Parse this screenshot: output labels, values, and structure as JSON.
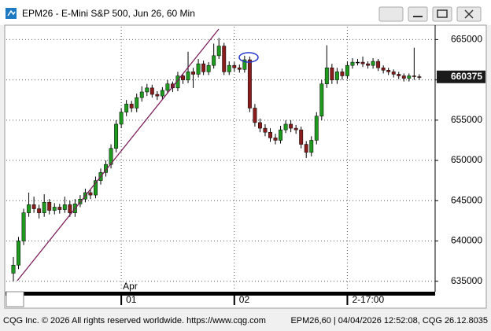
{
  "chart_data": {
    "type": "candlestick",
    "title": "EPM26 - E-Mini S&P 500, Jun 26, 60 Min",
    "month_label": "Apr",
    "categories": [
      null,
      null,
      null,
      null,
      null,
      null,
      null,
      null,
      null,
      null,
      null,
      null,
      null,
      null,
      null,
      null,
      null,
      null,
      null,
      null,
      null,
      "01",
      null,
      null,
      null,
      null,
      null,
      null,
      null,
      null,
      null,
      null,
      null,
      null,
      null,
      null,
      null,
      null,
      null,
      null,
      null,
      null,
      null,
      "02",
      null,
      null,
      null,
      null,
      null,
      null,
      null,
      null,
      null,
      null,
      null,
      null,
      null,
      null,
      null,
      null,
      null,
      null,
      null,
      null,
      null,
      "2-17:00",
      null,
      null,
      null,
      null,
      null,
      null,
      null,
      null,
      null,
      null,
      null,
      null,
      null,
      null
    ],
    "open": [
      636000,
      637000,
      640000,
      643500,
      644500,
      644000,
      643500,
      644800,
      643800,
      644200,
      643900,
      644500,
      643500,
      644600,
      645200,
      646000,
      645700,
      647500,
      648500,
      649500,
      651500,
      654500,
      656000,
      657000,
      656500,
      657800,
      658500,
      659000,
      658200,
      658000,
      658700,
      659500,
      659000,
      660500,
      660000,
      661000,
      660700,
      662000,
      661000,
      661800,
      663000,
      664200,
      661000,
      661800,
      661500,
      661300,
      662500,
      656500,
      654700,
      654000,
      653500,
      652800,
      652500,
      653800,
      654500,
      654000,
      653800,
      652000,
      651000,
      652500,
      655500,
      659500,
      661500,
      660000,
      661000,
      660500,
      661800,
      662200,
      662200,
      662000,
      661800,
      662300,
      661500,
      661200,
      661000,
      660700,
      660500,
      660200,
      660500,
      660400
    ],
    "high": [
      638000,
      640500,
      644000,
      646000,
      645500,
      644500,
      645800,
      645200,
      644700,
      644600,
      645500,
      645000,
      645200,
      645700,
      646500,
      646400,
      648000,
      649000,
      650000,
      652000,
      655000,
      656500,
      657500,
      657400,
      658300,
      659200,
      659500,
      659400,
      658600,
      659100,
      660000,
      659800,
      661000,
      660800,
      663500,
      661500,
      662600,
      662400,
      662200,
      664500,
      665200,
      664600,
      662300,
      662200,
      661900,
      663000,
      662900,
      657000,
      655200,
      654500,
      654000,
      653300,
      654300,
      655000,
      655000,
      654400,
      654200,
      652400,
      653000,
      656000,
      660000,
      664300,
      662000,
      661500,
      661400,
      662300,
      662700,
      662600,
      662900,
      662300,
      662700,
      662600,
      661800,
      661500,
      661300,
      661000,
      660800,
      660800,
      664000,
      660700
    ],
    "low": [
      635000,
      636500,
      639500,
      643000,
      643500,
      642800,
      643000,
      643300,
      643300,
      643400,
      643500,
      643000,
      643000,
      644200,
      644800,
      645200,
      645300,
      647000,
      648000,
      649000,
      651000,
      654000,
      655500,
      656000,
      656000,
      657300,
      658000,
      657800,
      657500,
      657600,
      658300,
      658500,
      658600,
      659500,
      659600,
      659000,
      660300,
      660600,
      660600,
      661400,
      662600,
      660600,
      660600,
      661000,
      660900,
      660900,
      656000,
      654200,
      653500,
      653000,
      652300,
      652000,
      652100,
      653400,
      653500,
      653300,
      651500,
      650300,
      650500,
      652000,
      655000,
      659000,
      659500,
      659500,
      660000,
      660100,
      661400,
      661800,
      661600,
      661400,
      661400,
      661100,
      660800,
      660600,
      660300,
      660100,
      659800,
      659800,
      660000,
      660000
    ],
    "close": [
      637000,
      640000,
      643500,
      644500,
      644000,
      643500,
      644800,
      643800,
      644200,
      643900,
      644500,
      643500,
      644600,
      645200,
      646000,
      645700,
      647500,
      648500,
      649500,
      651500,
      654500,
      656000,
      657000,
      656500,
      657800,
      658500,
      659000,
      658200,
      658000,
      658700,
      659500,
      659000,
      660500,
      660000,
      661000,
      660700,
      662000,
      661000,
      661800,
      663000,
      664200,
      661000,
      661800,
      661500,
      661300,
      662500,
      656500,
      654700,
      654000,
      653500,
      652800,
      652500,
      653800,
      654500,
      654000,
      653800,
      652000,
      651000,
      652500,
      655500,
      659500,
      661500,
      660000,
      661000,
      660500,
      661800,
      662200,
      662200,
      662000,
      661800,
      662300,
      661500,
      661200,
      661000,
      660700,
      660500,
      660200,
      660500,
      660400,
      660375
    ],
    "up_color": "#1e9a1e",
    "down_color": "#8a1c1c",
    "ylim": [
      633800,
      666600
    ],
    "yticks": [
      635000,
      640000,
      645000,
      650000,
      655000,
      660000,
      665000
    ],
    "last_value": 660375,
    "grid": true
  },
  "footer": {
    "left": "CQG Inc. © 2026 All rights reserved worldwide. https://www.cqg.com",
    "right": "EPM26,60 | 04/04/2026 12:52:08, CQG 26.12.8035"
  }
}
